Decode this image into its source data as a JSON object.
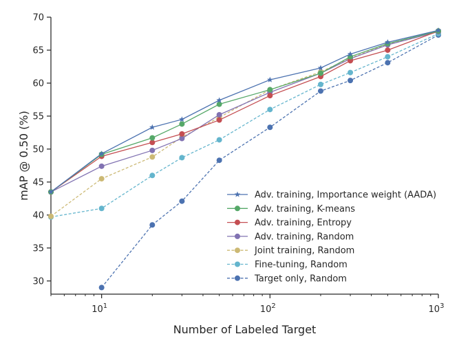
{
  "chart_data": {
    "type": "line",
    "title": "",
    "xlabel": "Number of Labeled Target",
    "ylabel": "mAP @ 0.50 (%)",
    "xscale": "log",
    "xlim": [
      5,
      1000
    ],
    "ylim": [
      28,
      70
    ],
    "xticks": [
      {
        "value": 10,
        "base": "10",
        "exp": "1"
      },
      {
        "value": 100,
        "base": "10",
        "exp": "2"
      },
      {
        "value": 1000,
        "base": "10",
        "exp": "3"
      }
    ],
    "yticks": [
      30,
      35,
      40,
      45,
      50,
      55,
      60,
      65,
      70
    ],
    "grid": false,
    "legend": "lower-right",
    "series": [
      {
        "name": "Adv. training, Importance weight (AADA)",
        "color": "#4c72b0",
        "marker": "star",
        "dash": "solid",
        "x": [
          5,
          10,
          20,
          30,
          50,
          100,
          200,
          300,
          500,
          1000
        ],
        "y": [
          43.5,
          49.3,
          53.3,
          54.5,
          57.4,
          60.5,
          62.3,
          64.4,
          66.2,
          68.0
        ]
      },
      {
        "name": "Adv. training, K-means",
        "color": "#55a868",
        "marker": "circle",
        "dash": "solid",
        "x": [
          5,
          10,
          20,
          30,
          50,
          100,
          200,
          300,
          500,
          1000
        ],
        "y": [
          43.5,
          49.2,
          51.7,
          53.8,
          56.8,
          59.0,
          61.5,
          64.0,
          66.0,
          67.9
        ]
      },
      {
        "name": "Adv. training, Entropy",
        "color": "#c44e52",
        "marker": "circle",
        "dash": "solid",
        "x": [
          5,
          10,
          20,
          30,
          50,
          100,
          200,
          300,
          500,
          1000
        ],
        "y": [
          43.5,
          48.9,
          51.0,
          52.3,
          54.4,
          58.1,
          61.0,
          63.4,
          65.0,
          67.9
        ]
      },
      {
        "name": "Adv. training, Random",
        "color": "#8172b2",
        "marker": "circle",
        "dash": "solid",
        "x": [
          5,
          10,
          20,
          30,
          50,
          100,
          200,
          300,
          500,
          1000
        ],
        "y": [
          43.5,
          47.4,
          49.8,
          51.6,
          55.2,
          58.6,
          61.5,
          63.7,
          65.8,
          67.8
        ]
      },
      {
        "name": "Joint training, Random",
        "color": "#ccb974",
        "marker": "circle",
        "dash": "dashed",
        "x": [
          5,
          10,
          20,
          30,
          50,
          100,
          200,
          300,
          500,
          1000
        ],
        "y": [
          39.8,
          45.5,
          48.8,
          51.8,
          54.8,
          59.0,
          61.7,
          63.8,
          65.9,
          67.8
        ]
      },
      {
        "name": "Fine-tuning, Random",
        "color": "#64b5cd",
        "marker": "circle",
        "dash": "dashed",
        "x": [
          5,
          10,
          20,
          30,
          50,
          100,
          200,
          300,
          500,
          1000
        ],
        "y": [
          39.7,
          41.0,
          46.0,
          48.7,
          51.4,
          56.0,
          59.8,
          61.6,
          64.0,
          67.5
        ]
      },
      {
        "name": "Target only, Random",
        "color": "#4c72b0",
        "marker": "circle",
        "dash": "dashed",
        "x": [
          10,
          20,
          30,
          50,
          100,
          200,
          300,
          500,
          1000
        ],
        "y": [
          29.0,
          38.5,
          42.1,
          48.3,
          53.3,
          58.8,
          60.4,
          63.1,
          67.3
        ]
      }
    ]
  }
}
